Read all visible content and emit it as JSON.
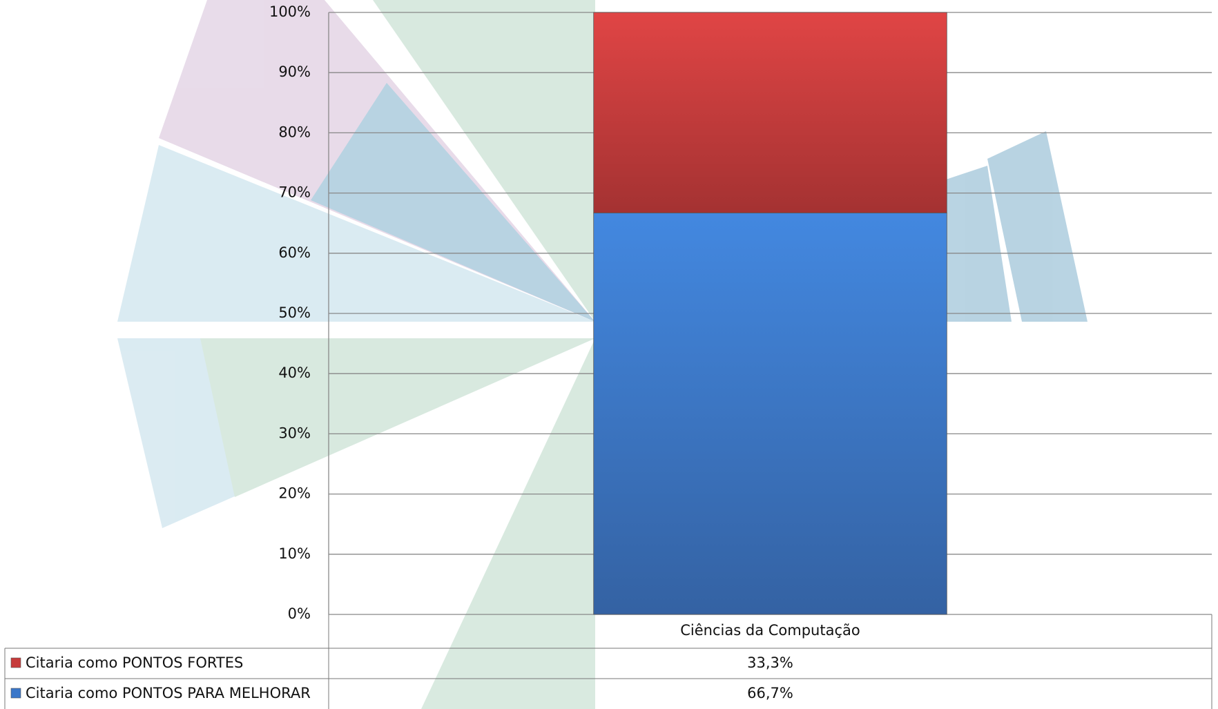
{
  "chart_data": {
    "type": "stacked_bar",
    "categories": [
      "Ciências da Computação"
    ],
    "series": [
      {
        "name": "Citaria como PONTOS FORTES",
        "color": "#c63b3b",
        "values": [
          33.3
        ],
        "value_labels": [
          "33,3%"
        ]
      },
      {
        "name": "Citaria como PONTOS PARA MELHORAR",
        "color": "#3a77c9",
        "values": [
          66.7
        ],
        "value_labels": [
          "66,7%"
        ]
      }
    ],
    "ylim": [
      0,
      100
    ],
    "yticks": [
      {
        "value": 0,
        "label": "0%"
      },
      {
        "value": 10,
        "label": "10%"
      },
      {
        "value": 20,
        "label": "20%"
      },
      {
        "value": 30,
        "label": "30%"
      },
      {
        "value": 40,
        "label": "40%"
      },
      {
        "value": 50,
        "label": "50%"
      },
      {
        "value": 60,
        "label": "60%"
      },
      {
        "value": 70,
        "label": "70%"
      },
      {
        "value": 80,
        "label": "80%"
      },
      {
        "value": 90,
        "label": "90%"
      },
      {
        "value": 100,
        "label": "100%"
      }
    ],
    "grid": true
  }
}
